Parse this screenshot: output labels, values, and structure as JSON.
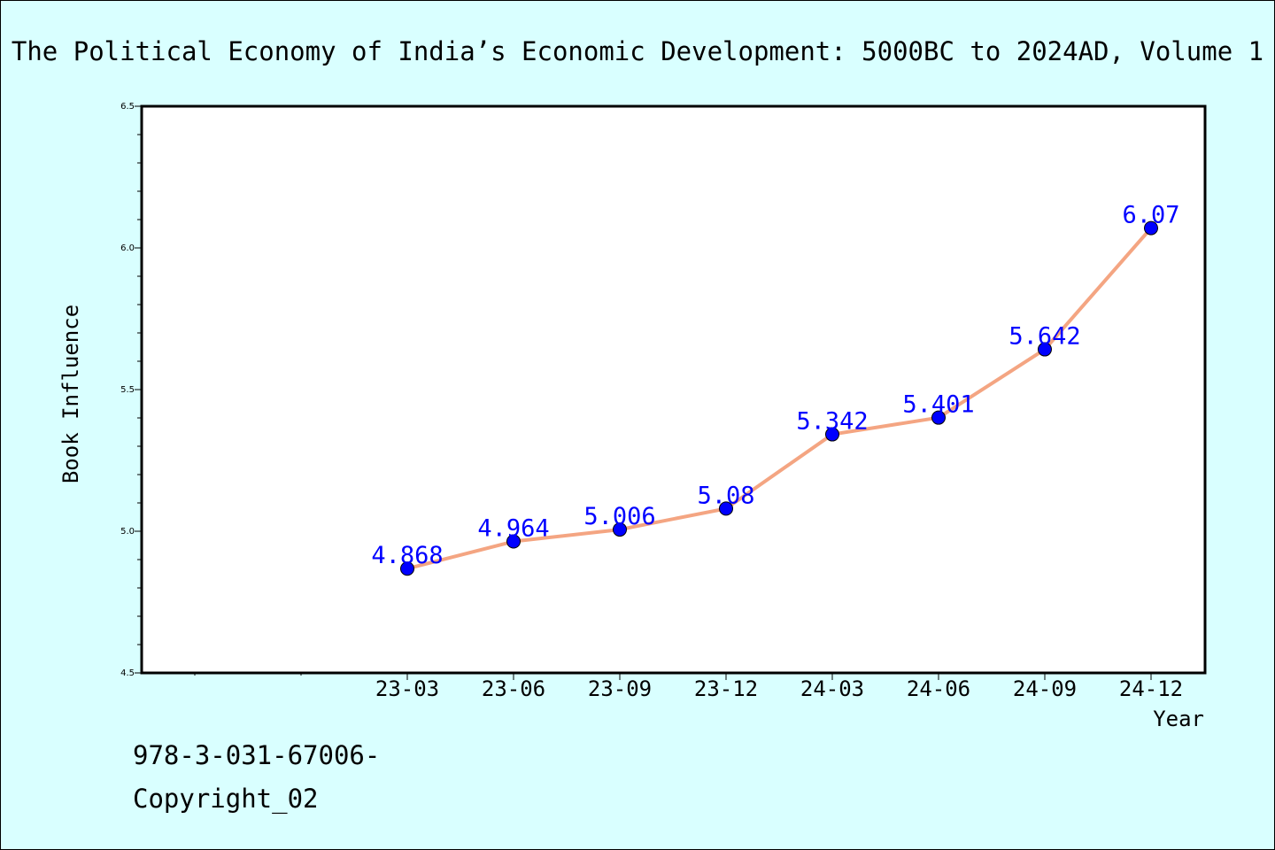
{
  "chart_data": {
    "type": "line",
    "title": "The Political Economy of India’s Economic Development: 5000BC to 2024AD, Volume 1",
    "xlabel": "Year",
    "ylabel": "Book Influence",
    "categories": [
      "23-03",
      "23-06",
      "23-09",
      "23-12",
      "24-03",
      "24-06",
      "24-09",
      "24-12"
    ],
    "series": [
      {
        "values": [
          4.868,
          4.964,
          5.006,
          5.08,
          5.342,
          5.401,
          5.642,
          6.07
        ]
      }
    ],
    "data_labels": [
      "4.868",
      "4.964",
      "5.006",
      "5.08",
      "5.342",
      "5.401",
      "5.642",
      "6.07"
    ],
    "ylim": [
      4.5,
      6.5
    ],
    "yticks": [
      "4.5",
      "5.0",
      "5.5",
      "6.0",
      "6.5"
    ],
    "grid": false,
    "colors": {
      "background": "#d9ffff",
      "plot_background": "#ffffff",
      "line": "#f4a582",
      "marker": "#0000ff",
      "data_label": "#0000ff"
    }
  },
  "footer": {
    "isbn": "978-3-031-67006-",
    "copyright": "Copyright_02"
  }
}
